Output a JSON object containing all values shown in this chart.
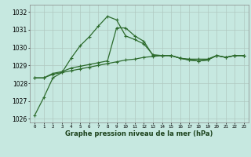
{
  "xlabel": "Graphe pression niveau de la mer (hPa)",
  "background_color": "#c6e8e0",
  "grid_color": "#b0c8c0",
  "line_color_dark": "#2d6b2d",
  "line_color_mid": "#3a7a3a",
  "line_color_light": "#4a8a4a",
  "x_values": [
    0,
    1,
    2,
    3,
    4,
    5,
    6,
    7,
    8,
    9,
    10,
    11,
    12,
    13,
    14,
    15,
    16,
    17,
    18,
    19,
    20,
    21,
    22,
    23
  ],
  "line1": [
    1026.2,
    1027.2,
    1028.3,
    1028.6,
    1029.4,
    1030.1,
    1030.6,
    1031.2,
    1031.75,
    1031.55,
    1030.65,
    1030.45,
    1030.2,
    1029.6,
    1029.55,
    1029.55,
    1029.4,
    1029.3,
    1029.25,
    1029.3,
    1029.55,
    1029.45,
    1029.55,
    1029.55
  ],
  "line2": [
    1028.3,
    1028.3,
    1028.55,
    1028.65,
    1028.85,
    1028.95,
    1029.05,
    1029.15,
    1029.25,
    1031.1,
    1031.1,
    1030.65,
    1030.35,
    1029.55,
    1029.55,
    1029.55,
    1029.4,
    1029.3,
    1029.25,
    1029.3,
    1029.55,
    1029.45,
    1029.55,
    1029.55
  ],
  "line3": [
    1028.3,
    1028.3,
    1028.5,
    1028.6,
    1028.7,
    1028.8,
    1028.9,
    1029.0,
    1029.1,
    1029.2,
    1029.3,
    1029.35,
    1029.45,
    1029.5,
    1029.55,
    1029.55,
    1029.4,
    1029.35,
    1029.35,
    1029.35,
    1029.55,
    1029.45,
    1029.55,
    1029.55
  ],
  "ylim": [
    1025.8,
    1032.4
  ],
  "yticks": [
    1026,
    1027,
    1028,
    1029,
    1030,
    1031,
    1032
  ],
  "xlim": [
    -0.5,
    23.5
  ]
}
